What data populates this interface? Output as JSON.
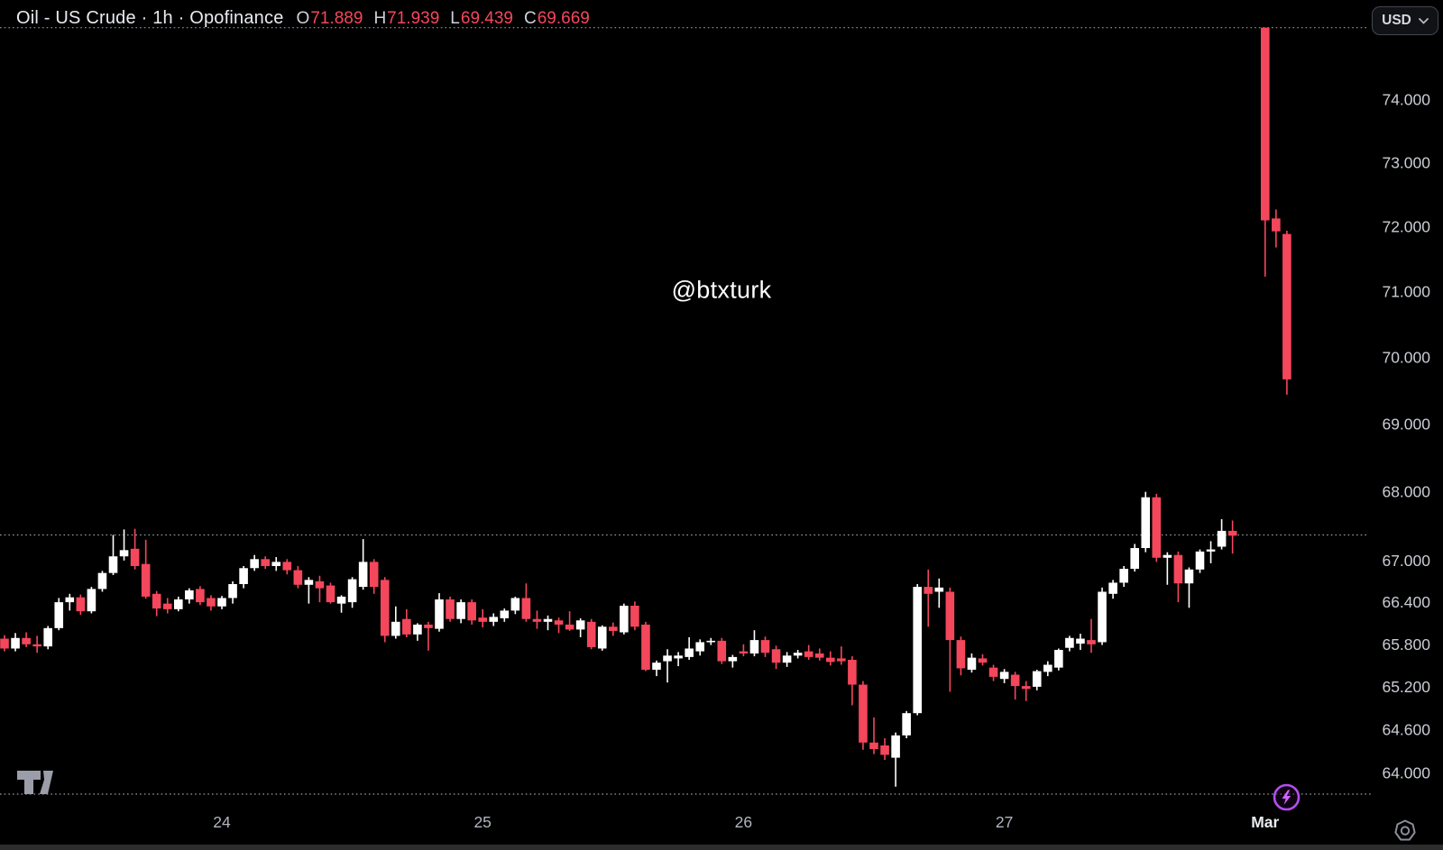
{
  "header": {
    "symbol_title": "Oil - US Crude · 1h · Opofinance",
    "ohlc": {
      "o_label": "O",
      "o_value": "71.889",
      "h_label": "H",
      "h_value": "71.939",
      "l_label": "L",
      "l_value": "69.439",
      "c_label": "C",
      "c_value": "69.669"
    },
    "currency_button": {
      "label": "USD"
    }
  },
  "watermark": "@btxturk",
  "colors": {
    "background": "#000000",
    "up": "#ffffff",
    "down": "#f4475c",
    "axis_text": "#c9ccd4",
    "time_text": "#b2b5be",
    "emphasis_text": "#eaecf0",
    "legend_value": "#f4475c",
    "dotted_line": "#a7abb4",
    "purple": "#b44df2",
    "bolt_fill": "#d163ff",
    "icon_gray": "#9b9ea8"
  },
  "price_axis": {
    "labels": [
      {
        "text": "74.000",
        "price": 74.0
      },
      {
        "text": "73.000",
        "price": 73.0
      },
      {
        "text": "72.000",
        "price": 72.0
      },
      {
        "text": "71.000",
        "price": 71.0
      },
      {
        "text": "70.000",
        "price": 70.0
      },
      {
        "text": "69.000",
        "price": 69.0
      },
      {
        "text": "68.000",
        "price": 68.0
      },
      {
        "text": "67.000",
        "price": 67.0
      },
      {
        "text": "66.400",
        "price": 66.4
      },
      {
        "text": "65.800",
        "price": 65.8
      },
      {
        "text": "65.200",
        "price": 65.2
      },
      {
        "text": "64.600",
        "price": 64.6
      },
      {
        "text": "64.000",
        "price": 64.0
      }
    ]
  },
  "time_axis": {
    "labels": [
      {
        "text": "24",
        "index": 20,
        "bold": false
      },
      {
        "text": "25",
        "index": 44,
        "bold": false
      },
      {
        "text": "26",
        "index": 68,
        "bold": false
      },
      {
        "text": "27",
        "index": 92,
        "bold": false
      },
      {
        "text": "Mar",
        "index": 116,
        "bold": true
      }
    ]
  },
  "price_lines": [
    {
      "price": 75.16
    },
    {
      "price": 67.37
    }
  ],
  "chart_data": {
    "type": "candlestick",
    "title": "Oil - US Crude",
    "interval": "1h",
    "source": "Opofinance",
    "currency": "USD",
    "y_scale": "log",
    "visible_price_range": [
      63.8,
      75.9
    ],
    "legend_ohlc": {
      "open": 71.889,
      "high": 71.939,
      "low": 69.439,
      "close": 69.669
    },
    "candles_format": [
      "index",
      "open",
      "high",
      "low",
      "close"
    ],
    "candles": [
      [
        0,
        65.88,
        65.93,
        65.7,
        65.74
      ],
      [
        1,
        65.74,
        65.96,
        65.7,
        65.89
      ],
      [
        2,
        65.89,
        65.97,
        65.76,
        65.8
      ],
      [
        3,
        65.8,
        65.92,
        65.68,
        65.77
      ],
      [
        4,
        65.77,
        66.06,
        65.73,
        66.03
      ],
      [
        5,
        66.03,
        66.46,
        66.0,
        66.4
      ],
      [
        6,
        66.4,
        66.52,
        66.28,
        66.47
      ],
      [
        7,
        66.47,
        66.51,
        66.22,
        66.27
      ],
      [
        8,
        66.27,
        66.62,
        66.24,
        66.59
      ],
      [
        9,
        66.59,
        66.85,
        66.55,
        66.82
      ],
      [
        10,
        66.82,
        67.37,
        66.79,
        67.06
      ],
      [
        11,
        67.06,
        67.45,
        67.0,
        67.15
      ],
      [
        12,
        67.17,
        67.46,
        66.87,
        66.92
      ],
      [
        13,
        66.95,
        67.3,
        66.45,
        66.48
      ],
      [
        14,
        66.52,
        66.56,
        66.2,
        66.31
      ],
      [
        15,
        66.38,
        66.46,
        66.24,
        66.3
      ],
      [
        16,
        66.3,
        66.48,
        66.27,
        66.44
      ],
      [
        17,
        66.44,
        66.6,
        66.38,
        66.57
      ],
      [
        18,
        66.59,
        66.63,
        66.36,
        66.4
      ],
      [
        19,
        66.46,
        66.5,
        66.28,
        66.34
      ],
      [
        20,
        66.34,
        66.49,
        66.3,
        66.46
      ],
      [
        21,
        66.46,
        66.7,
        66.38,
        66.66
      ],
      [
        22,
        66.66,
        66.92,
        66.6,
        66.89
      ],
      [
        23,
        66.89,
        67.08,
        66.85,
        67.02
      ],
      [
        24,
        67.02,
        67.06,
        66.88,
        66.92
      ],
      [
        25,
        66.92,
        67.05,
        66.85,
        66.98
      ],
      [
        26,
        66.98,
        67.02,
        66.8,
        66.86
      ],
      [
        27,
        66.86,
        66.92,
        66.6,
        66.65
      ],
      [
        28,
        66.65,
        66.76,
        66.38,
        66.72
      ],
      [
        29,
        66.7,
        66.78,
        66.4,
        66.6
      ],
      [
        30,
        66.64,
        66.68,
        66.38,
        66.4
      ],
      [
        31,
        66.38,
        66.5,
        66.25,
        66.48
      ],
      [
        32,
        66.4,
        66.76,
        66.32,
        66.73
      ],
      [
        33,
        66.62,
        67.31,
        66.58,
        66.98
      ],
      [
        34,
        66.98,
        67.02,
        66.52,
        66.62
      ],
      [
        35,
        66.72,
        66.76,
        65.83,
        65.92
      ],
      [
        36,
        65.92,
        66.34,
        65.88,
        66.12
      ],
      [
        37,
        66.16,
        66.3,
        65.9,
        65.94
      ],
      [
        38,
        65.94,
        66.1,
        65.85,
        66.08
      ],
      [
        39,
        66.08,
        66.12,
        65.71,
        66.03
      ],
      [
        40,
        66.02,
        66.53,
        65.98,
        66.44
      ],
      [
        41,
        66.44,
        66.48,
        66.12,
        66.16
      ],
      [
        42,
        66.16,
        66.44,
        66.1,
        66.4
      ],
      [
        43,
        66.4,
        66.44,
        66.08,
        66.14
      ],
      [
        44,
        66.18,
        66.3,
        66.04,
        66.12
      ],
      [
        45,
        66.12,
        66.24,
        66.06,
        66.19
      ],
      [
        46,
        66.17,
        66.31,
        66.12,
        66.28
      ],
      [
        47,
        66.28,
        66.48,
        66.23,
        66.46
      ],
      [
        48,
        66.46,
        66.67,
        66.12,
        66.16
      ],
      [
        49,
        66.16,
        66.28,
        66.02,
        66.12
      ],
      [
        50,
        66.12,
        66.21,
        66.0,
        66.16
      ],
      [
        51,
        66.14,
        66.18,
        65.96,
        66.08
      ],
      [
        52,
        66.08,
        66.27,
        65.99,
        66.01
      ],
      [
        53,
        66.01,
        66.17,
        65.9,
        66.14
      ],
      [
        54,
        66.12,
        66.16,
        65.73,
        65.76
      ],
      [
        55,
        65.74,
        66.07,
        65.71,
        66.05
      ],
      [
        56,
        66.05,
        66.11,
        65.92,
        65.99
      ],
      [
        57,
        65.97,
        66.38,
        65.94,
        66.35
      ],
      [
        58,
        66.35,
        66.41,
        66.0,
        66.05
      ],
      [
        59,
        66.08,
        66.12,
        65.42,
        65.44
      ],
      [
        60,
        65.44,
        65.57,
        65.35,
        65.54
      ],
      [
        61,
        65.56,
        65.73,
        65.26,
        65.64
      ],
      [
        62,
        65.6,
        65.69,
        65.49,
        65.64
      ],
      [
        63,
        65.62,
        65.9,
        65.58,
        65.74
      ],
      [
        64,
        65.7,
        65.87,
        65.64,
        65.83
      ],
      [
        65,
        65.83,
        65.89,
        65.79,
        65.85
      ],
      [
        66,
        65.85,
        65.89,
        65.52,
        65.56
      ],
      [
        67,
        65.56,
        65.65,
        65.47,
        65.62
      ],
      [
        68,
        65.7,
        65.8,
        65.63,
        65.67
      ],
      [
        69,
        65.67,
        66.0,
        65.63,
        65.86
      ],
      [
        70,
        65.86,
        65.91,
        65.62,
        65.68
      ],
      [
        71,
        65.73,
        65.78,
        65.45,
        65.54
      ],
      [
        72,
        65.54,
        65.69,
        65.48,
        65.64
      ],
      [
        73,
        65.64,
        65.72,
        65.6,
        65.68
      ],
      [
        74,
        65.7,
        65.79,
        65.58,
        65.62
      ],
      [
        75,
        65.67,
        65.74,
        65.57,
        65.61
      ],
      [
        76,
        65.61,
        65.7,
        65.5,
        65.55
      ],
      [
        77,
        65.6,
        65.77,
        65.51,
        65.56
      ],
      [
        78,
        65.58,
        65.63,
        64.94,
        65.23
      ],
      [
        79,
        65.23,
        65.28,
        64.32,
        64.42
      ],
      [
        80,
        64.42,
        64.77,
        64.26,
        64.33
      ],
      [
        81,
        64.38,
        64.48,
        64.18,
        64.25
      ],
      [
        82,
        64.21,
        64.56,
        63.81,
        64.52
      ],
      [
        83,
        64.52,
        64.86,
        64.48,
        64.83
      ],
      [
        84,
        64.83,
        66.66,
        64.8,
        66.62
      ],
      [
        85,
        66.62,
        66.87,
        66.05,
        66.52
      ],
      [
        86,
        66.55,
        66.74,
        66.32,
        66.61
      ],
      [
        87,
        66.55,
        66.61,
        65.13,
        65.86
      ],
      [
        88,
        65.86,
        65.91,
        65.36,
        65.46
      ],
      [
        89,
        65.44,
        65.67,
        65.4,
        65.61
      ],
      [
        90,
        65.6,
        65.66,
        65.5,
        65.54
      ],
      [
        91,
        65.47,
        65.51,
        65.28,
        65.34
      ],
      [
        92,
        65.31,
        65.45,
        65.25,
        65.41
      ],
      [
        93,
        65.37,
        65.41,
        65.02,
        65.21
      ],
      [
        94,
        65.21,
        65.28,
        65.0,
        65.17
      ],
      [
        95,
        65.2,
        65.44,
        65.15,
        65.42
      ],
      [
        96,
        65.41,
        65.56,
        65.35,
        65.51
      ],
      [
        97,
        65.47,
        65.74,
        65.43,
        65.72
      ],
      [
        98,
        65.75,
        65.92,
        65.7,
        65.89
      ],
      [
        99,
        65.81,
        65.95,
        65.72,
        65.88
      ],
      [
        100,
        65.86,
        66.16,
        65.68,
        65.8
      ],
      [
        101,
        65.83,
        66.61,
        65.79,
        66.55
      ],
      [
        102,
        66.52,
        66.72,
        66.45,
        66.68
      ],
      [
        103,
        66.68,
        66.92,
        66.62,
        66.88
      ],
      [
        104,
        66.88,
        67.24,
        66.84,
        67.18
      ],
      [
        105,
        67.18,
        68.0,
        67.12,
        67.92
      ],
      [
        106,
        67.92,
        67.97,
        66.98,
        67.04
      ],
      [
        107,
        67.04,
        67.12,
        66.65,
        67.08
      ],
      [
        108,
        67.08,
        67.13,
        66.4,
        66.67
      ],
      [
        109,
        66.67,
        66.9,
        66.32,
        66.87
      ],
      [
        110,
        66.87,
        67.16,
        66.82,
        67.13
      ],
      [
        111,
        67.13,
        67.28,
        66.96,
        67.16
      ],
      [
        112,
        67.2,
        67.6,
        67.16,
        67.43
      ],
      [
        113,
        67.43,
        67.58,
        67.1,
        67.36
      ],
      [
        116,
        75.16,
        75.16,
        71.23,
        72.1
      ],
      [
        117,
        72.13,
        72.27,
        71.68,
        71.93
      ],
      [
        118,
        71.889,
        71.939,
        69.439,
        69.669
      ]
    ]
  }
}
